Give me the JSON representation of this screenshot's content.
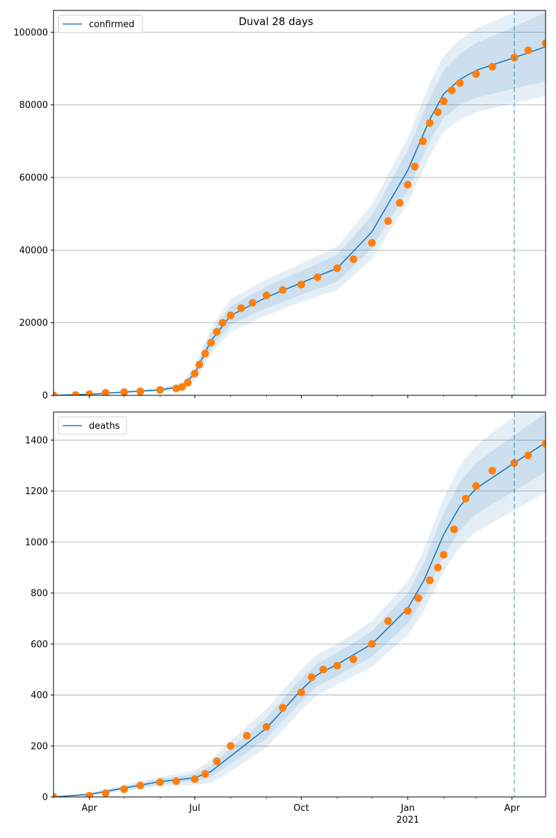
{
  "figure": {
    "title": "Duval 28 days",
    "colors": {
      "model": "#1f77b4",
      "observed": "#ff7f0e",
      "band": "#1f77b4"
    }
  },
  "x_ticks": [
    {
      "label": "Apr",
      "x": "2020-04-01"
    },
    {
      "label": "Jul",
      "x": "2020-07-01"
    },
    {
      "label": "Oct",
      "x": "2020-10-01"
    },
    {
      "label": "Jan",
      "x": "2021-01-01",
      "sublabel": "2021"
    },
    {
      "label": "Apr",
      "x": "2021-04-01"
    }
  ],
  "chart_data": [
    {
      "type": "line",
      "title": "Duval 28 days",
      "legend": {
        "label": "confirmed",
        "position": "top-left"
      },
      "xlim": [
        "2020-03-01",
        "2021-04-30"
      ],
      "ylim": [
        0,
        106000
      ],
      "y_ticks": [
        0,
        20000,
        40000,
        60000,
        80000,
        100000
      ],
      "y_tick_labels": [
        "0",
        "20000",
        "40000",
        "60000",
        "80000",
        "100000"
      ],
      "grid": "horizontal",
      "forecast_start": "2021-04-03",
      "fit": {
        "x": [
          "2020-03-01",
          "2020-04-01",
          "2020-05-01",
          "2020-06-01",
          "2020-06-20",
          "2020-07-01",
          "2020-07-15",
          "2020-08-01",
          "2020-09-01",
          "2020-10-01",
          "2020-11-01",
          "2020-12-01",
          "2021-01-01",
          "2021-01-20",
          "2021-02-01",
          "2021-02-15",
          "2021-03-01",
          "2021-04-03",
          "2021-04-30"
        ],
        "y": [
          0,
          300,
          900,
          1500,
          2500,
          6000,
          15000,
          22000,
          27000,
          31000,
          35000,
          45000,
          62000,
          76000,
          83000,
          87000,
          89500,
          93000,
          96000
        ],
        "band_half_width": [
          [
            0,
            80,
            150,
            250,
            500,
            1000,
            2000,
            2500,
            3000,
            3300,
            3700,
            4500,
            5500,
            6000,
            6500,
            7000,
            7500,
            8500,
            9500
          ],
          [
            0,
            150,
            300,
            500,
            1000,
            2000,
            3500,
            4500,
            5000,
            5300,
            6000,
            7500,
            9000,
            10000,
            10500,
            11000,
            11500,
            12500,
            13500
          ]
        ]
      },
      "observed": {
        "x": [
          "2020-03-01",
          "2020-03-20",
          "2020-04-01",
          "2020-04-15",
          "2020-05-01",
          "2020-05-15",
          "2020-06-01",
          "2020-06-15",
          "2020-06-20",
          "2020-06-25",
          "2020-07-01",
          "2020-07-05",
          "2020-07-10",
          "2020-07-15",
          "2020-07-20",
          "2020-07-25",
          "2020-08-01",
          "2020-08-10",
          "2020-08-20",
          "2020-09-01",
          "2020-09-15",
          "2020-10-01",
          "2020-10-15",
          "2020-11-01",
          "2020-11-15",
          "2020-12-01",
          "2020-12-15",
          "2020-12-25",
          "2021-01-01",
          "2021-01-07",
          "2021-01-14",
          "2021-01-20",
          "2021-01-27",
          "2021-02-01",
          "2021-02-08",
          "2021-02-15",
          "2021-03-01",
          "2021-03-15",
          "2021-04-03",
          "2021-04-15",
          "2021-04-30"
        ],
        "y": [
          0,
          100,
          300,
          700,
          900,
          1100,
          1500,
          1900,
          2300,
          3500,
          6000,
          8500,
          11500,
          14500,
          17500,
          20000,
          22000,
          24000,
          25500,
          27500,
          29000,
          30500,
          32500,
          35000,
          37500,
          42000,
          48000,
          53000,
          58000,
          63000,
          70000,
          75000,
          78000,
          81000,
          84000,
          86000,
          88500,
          90500,
          93000,
          95000,
          97000
        ]
      }
    },
    {
      "type": "line",
      "legend": {
        "label": "deaths",
        "position": "top-left"
      },
      "xlim": [
        "2020-03-01",
        "2021-04-30"
      ],
      "ylim": [
        0,
        1510
      ],
      "y_ticks": [
        0,
        200,
        400,
        600,
        800,
        1000,
        1200,
        1400
      ],
      "y_tick_labels": [
        "0",
        "200",
        "400",
        "600",
        "800",
        "1000",
        "1200",
        "1400"
      ],
      "grid": "horizontal",
      "forecast_start": "2021-04-03",
      "fit": {
        "x": [
          "2020-03-01",
          "2020-04-01",
          "2020-05-01",
          "2020-06-01",
          "2020-07-01",
          "2020-07-15",
          "2020-08-01",
          "2020-09-01",
          "2020-10-01",
          "2020-10-15",
          "2020-11-01",
          "2020-12-01",
          "2021-01-01",
          "2021-01-15",
          "2021-02-01",
          "2021-02-15",
          "2021-03-01",
          "2021-04-03",
          "2021-04-30"
        ],
        "y": [
          0,
          10,
          35,
          60,
          75,
          100,
          160,
          270,
          420,
          480,
          520,
          600,
          740,
          850,
          1030,
          1140,
          1210,
          1310,
          1390
        ],
        "band_half_width": [
          [
            0,
            3,
            6,
            10,
            14,
            22,
            30,
            40,
            45,
            45,
            45,
            50,
            60,
            70,
            85,
            95,
            100,
            110,
            115
          ],
          [
            0,
            6,
            12,
            18,
            28,
            45,
            60,
            75,
            80,
            80,
            80,
            90,
            105,
            120,
            145,
            160,
            170,
            185,
            195
          ]
        ]
      },
      "observed": {
        "x": [
          "2020-03-01",
          "2020-04-01",
          "2020-04-15",
          "2020-05-01",
          "2020-05-15",
          "2020-06-01",
          "2020-06-15",
          "2020-07-01",
          "2020-07-10",
          "2020-07-20",
          "2020-08-01",
          "2020-08-15",
          "2020-09-01",
          "2020-09-15",
          "2020-10-01",
          "2020-10-10",
          "2020-10-20",
          "2020-11-01",
          "2020-11-15",
          "2020-12-01",
          "2020-12-15",
          "2021-01-01",
          "2021-01-10",
          "2021-01-20",
          "2021-01-27",
          "2021-02-01",
          "2021-02-10",
          "2021-02-20",
          "2021-03-01",
          "2021-03-15",
          "2021-04-03",
          "2021-04-15",
          "2021-04-30"
        ],
        "y": [
          0,
          5,
          15,
          30,
          45,
          58,
          62,
          70,
          90,
          140,
          200,
          240,
          275,
          350,
          410,
          470,
          500,
          515,
          540,
          600,
          690,
          730,
          780,
          850,
          900,
          950,
          1050,
          1170,
          1220,
          1280,
          1310,
          1340,
          1385
        ]
      }
    }
  ]
}
